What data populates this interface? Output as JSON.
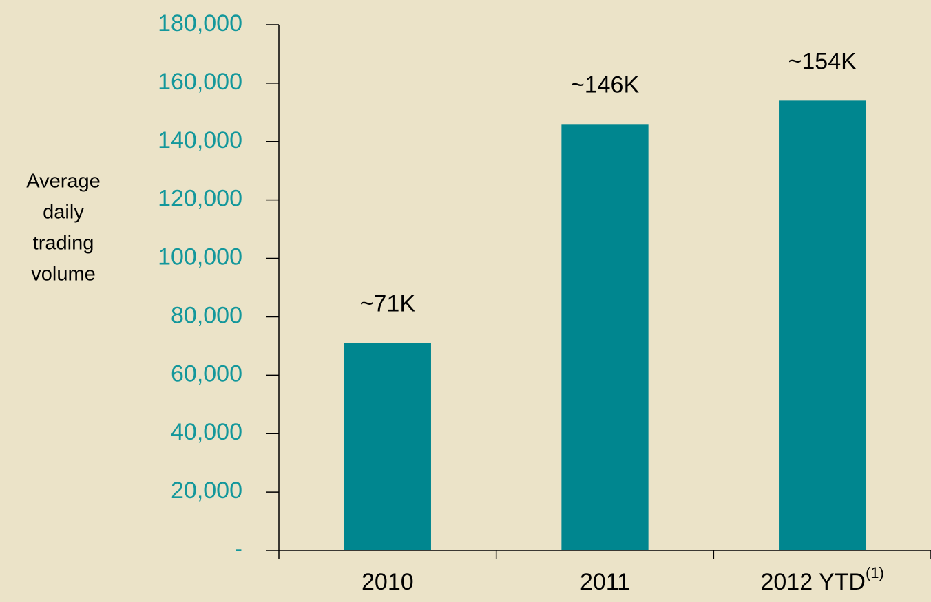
{
  "chart_data": {
    "type": "bar",
    "ylabel": [
      "Average",
      "daily",
      "trading",
      "volume"
    ],
    "categories": [
      "2010",
      "2011",
      "2012 YTD"
    ],
    "category_superscripts": [
      null,
      null,
      "(1)"
    ],
    "values": [
      71000,
      146000,
      154000
    ],
    "value_labels": [
      "~71K",
      "~146K",
      "~154K"
    ],
    "color": "#00868f",
    "ylim": [
      0,
      180000
    ],
    "yticks": [
      {
        "value": 0,
        "label": "-"
      },
      {
        "value": 20000,
        "label": "20,000"
      },
      {
        "value": 40000,
        "label": "40,000"
      },
      {
        "value": 60000,
        "label": "60,000"
      },
      {
        "value": 80000,
        "label": "80,000"
      },
      {
        "value": 100000,
        "label": "100,000"
      },
      {
        "value": 120000,
        "label": "120,000"
      },
      {
        "value": 140000,
        "label": "140,000"
      },
      {
        "value": 160000,
        "label": "160,000"
      },
      {
        "value": 180000,
        "label": "180,000"
      }
    ],
    "grid": false
  }
}
